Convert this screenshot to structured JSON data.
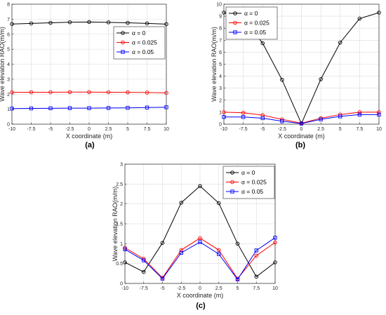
{
  "chart_data": [
    {
      "type": "line",
      "panel_label": "(a)",
      "xlabel": "X coordinate (m)",
      "ylabel": "Wave elevation RAO(m/m)",
      "xlim": [
        -10,
        10
      ],
      "ylim": [
        0,
        8
      ],
      "xticks": [
        -10,
        -7.5,
        -5,
        -2.5,
        0,
        2.5,
        5,
        7.5,
        10
      ],
      "xtick_labels": [
        "-10",
        "-7.5",
        "-5",
        "-2.5",
        "0",
        "2.5",
        "5",
        "7.5",
        "10"
      ],
      "yticks": [
        0,
        1,
        2,
        3,
        4,
        5,
        6,
        7,
        8
      ],
      "ytick_labels": [
        "0",
        "1",
        "2",
        "3",
        "4",
        "5",
        "6",
        "7",
        "8"
      ],
      "grid": true,
      "legend_position": "center-right",
      "x": [
        -10,
        -7.5,
        -5,
        -2.5,
        0,
        2.5,
        5,
        7.5,
        10
      ],
      "series": [
        {
          "name": "α = 0",
          "color": "#000000",
          "marker": "circle",
          "values": [
            6.68,
            6.72,
            6.76,
            6.8,
            6.81,
            6.79,
            6.76,
            6.72,
            6.67
          ]
        },
        {
          "name": "α = 0.025",
          "color": "#ff0000",
          "marker": "circle",
          "values": [
            2.12,
            2.13,
            2.13,
            2.14,
            2.14,
            2.13,
            2.12,
            2.11,
            2.09
          ]
        },
        {
          "name": "α = 0.05",
          "color": "#0000ff",
          "marker": "square",
          "values": [
            1.04,
            1.05,
            1.06,
            1.07,
            1.07,
            1.08,
            1.09,
            1.11,
            1.13
          ]
        }
      ]
    },
    {
      "type": "line",
      "panel_label": "(b)",
      "xlabel": "X coordinate (m)",
      "ylabel": "Wave elevation RAO(m/m)",
      "xlim": [
        -10,
        10
      ],
      "ylim": [
        0,
        10
      ],
      "xticks": [
        -10,
        -7.5,
        -5,
        -2.5,
        0,
        2.5,
        5,
        7.5,
        10
      ],
      "xtick_labels": [
        "-10",
        "-7.5",
        "-5",
        "-2.5",
        "0",
        "2.5",
        "5",
        "7.5",
        "10"
      ],
      "yticks": [
        0,
        1,
        2,
        3,
        4,
        5,
        6,
        7,
        8,
        9,
        10
      ],
      "ytick_labels": [
        "0",
        "1",
        "2",
        "3",
        "4",
        "5",
        "6",
        "7",
        "8",
        "9",
        "10"
      ],
      "grid": true,
      "legend_position": "top-left",
      "x": [
        -10,
        -7.5,
        -5,
        -2.5,
        0,
        2.5,
        5,
        7.5,
        10
      ],
      "series": [
        {
          "name": "α = 0",
          "color": "#000000",
          "marker": "circle",
          "values": [
            9.3,
            8.8,
            6.75,
            3.7,
            0.05,
            3.75,
            6.8,
            8.8,
            9.3
          ]
        },
        {
          "name": "α = 0.025",
          "color": "#ff0000",
          "marker": "circle",
          "values": [
            1.0,
            0.95,
            0.75,
            0.4,
            0.08,
            0.5,
            0.8,
            1.0,
            1.0
          ]
        },
        {
          "name": "α = 0.05",
          "color": "#0000ff",
          "marker": "square",
          "values": [
            0.6,
            0.6,
            0.5,
            0.25,
            0.05,
            0.4,
            0.65,
            0.8,
            0.8
          ]
        }
      ]
    },
    {
      "type": "line",
      "panel_label": "(c)",
      "xlabel": "X coordinate (m)",
      "ylabel": "Wave elevation RAO(m/m)",
      "xlim": [
        -10,
        10
      ],
      "ylim": [
        0,
        3
      ],
      "xticks": [
        -10,
        -7.5,
        -5,
        -2.5,
        0,
        2.5,
        5,
        7.5,
        10
      ],
      "xtick_labels": [
        "-10",
        "-7.5",
        "-5",
        "-2.5",
        "0",
        "2.5",
        "5",
        "7.5",
        "10"
      ],
      "yticks": [
        0,
        0.5,
        1,
        1.5,
        2,
        2.5,
        3
      ],
      "ytick_labels": [
        "0",
        "0.5",
        "1",
        "1.5",
        "2",
        "2.5",
        "3"
      ],
      "grid": true,
      "legend_position": "top-right",
      "x": [
        -10,
        -7.5,
        -5,
        -2.5,
        0,
        2.5,
        5,
        7.5,
        10
      ],
      "series": [
        {
          "name": "α = 0",
          "color": "#000000",
          "marker": "circle",
          "values": [
            0.53,
            0.29,
            1.02,
            2.03,
            2.45,
            2.02,
            1.0,
            0.17,
            0.53
          ]
        },
        {
          "name": "α = 0.025",
          "color": "#ff0000",
          "marker": "circle",
          "values": [
            0.9,
            0.62,
            0.14,
            0.84,
            1.14,
            0.84,
            0.12,
            0.7,
            1.03
          ]
        },
        {
          "name": "α = 0.05",
          "color": "#0000ff",
          "marker": "square",
          "values": [
            0.86,
            0.58,
            0.12,
            0.77,
            1.04,
            0.74,
            0.1,
            0.83,
            1.15
          ]
        }
      ]
    }
  ]
}
